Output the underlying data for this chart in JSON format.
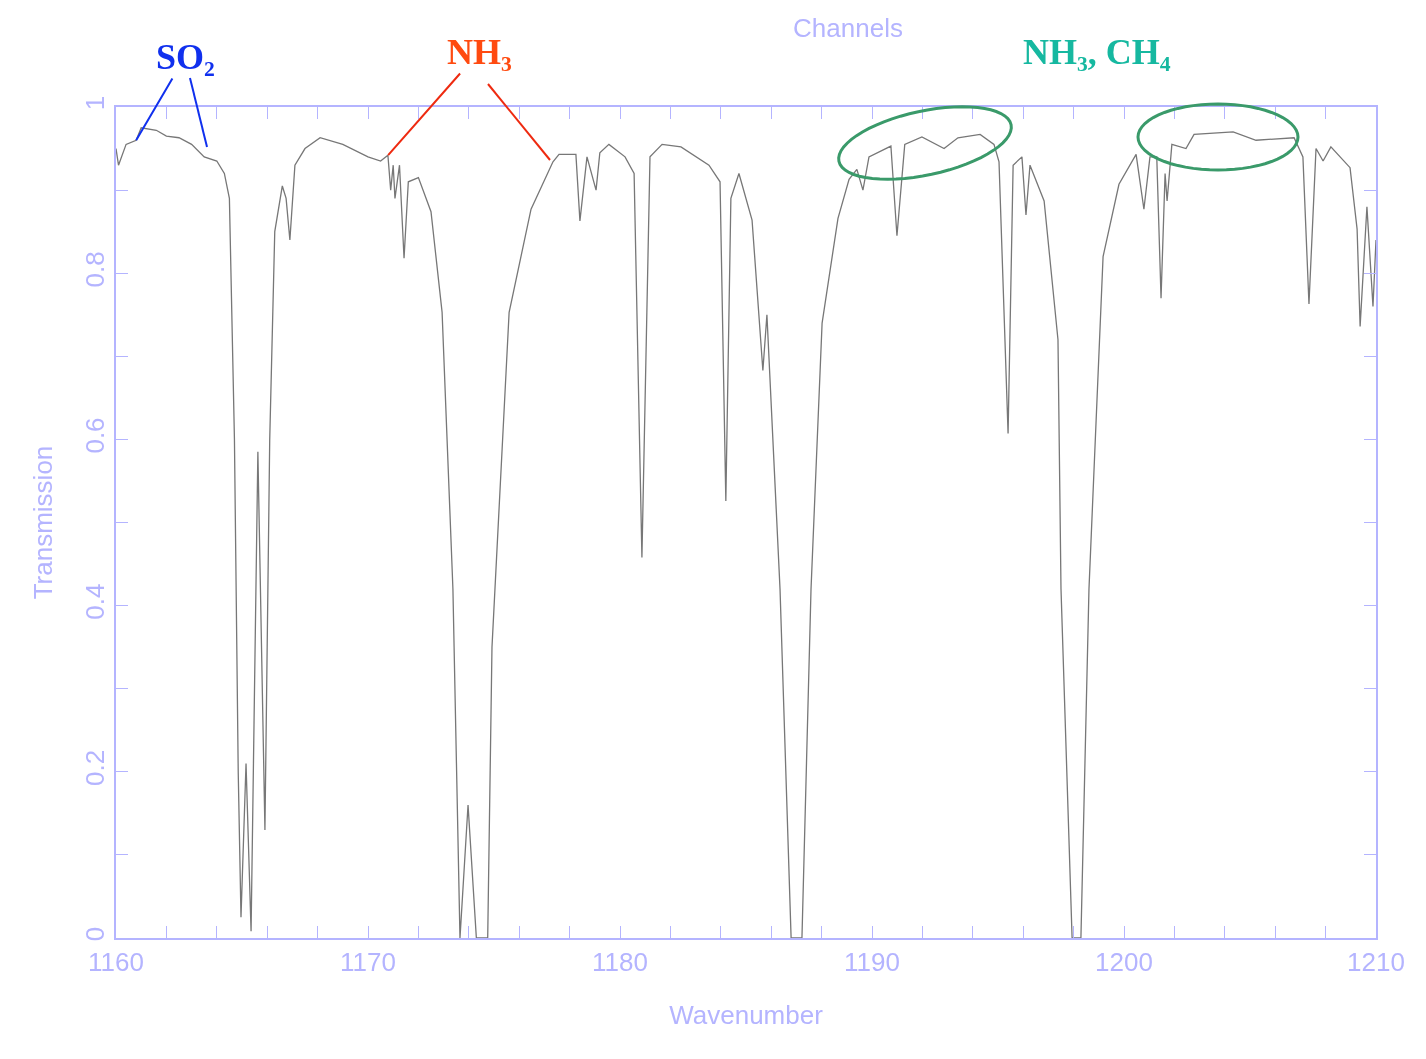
{
  "chart_data": {
    "type": "line",
    "title": "Channels",
    "xlabel": "Wavenumber",
    "ylabel": "Transmission",
    "annotations": [
      {
        "text": "SO₂",
        "x": 1160.8,
        "y": 0.96
      },
      {
        "text": "NH₃",
        "x": 1170.8,
        "y": 0.942
      },
      "NH₃, CH₄"
    ],
    "x": [
      1160.0,
      1160.1,
      1160.4,
      1160.8,
      1161.0,
      1161.6,
      1162.0,
      1162.5,
      1163.0,
      1163.5,
      1164.0,
      1164.3,
      1164.5,
      1164.7,
      1164.85,
      1164.96,
      1165.16,
      1165.36,
      1165.63,
      1165.91,
      1166.1,
      1166.3,
      1166.6,
      1166.75,
      1166.9,
      1167.1,
      1167.5,
      1168.1,
      1169.0,
      1170.0,
      1170.5,
      1170.79,
      1170.9,
      1171.0,
      1171.07,
      1171.25,
      1171.43,
      1171.6,
      1172.0,
      1172.5,
      1172.94,
      1173.37,
      1173.65,
      1173.97,
      1174.3,
      1174.75,
      1174.92,
      1175.6,
      1176.47,
      1177.34,
      1177.58,
      1178.25,
      1178.41,
      1178.69,
      1179.05,
      1179.2,
      1179.56,
      1180.2,
      1180.56,
      1180.87,
      1181.19,
      1181.67,
      1182.42,
      1183.53,
      1183.97,
      1184.2,
      1184.4,
      1184.72,
      1185.24,
      1185.67,
      1185.83,
      1186.35,
      1186.79,
      1187.22,
      1187.58,
      1188.02,
      1188.65,
      1189.09,
      1189.4,
      1189.64,
      1189.88,
      1190.75,
      1190.99,
      1191.3,
      1191.98,
      1192.86,
      1193.41,
      1194.29,
      1194.84,
      1195.04,
      1195.4,
      1195.6,
      1195.95,
      1196.11,
      1196.27,
      1196.83,
      1197.38,
      1197.5,
      1197.94,
      1198.29,
      1198.61,
      1199.17,
      1199.8,
      1200.48,
      1200.79,
      1201.03,
      1201.3,
      1201.47,
      1201.63,
      1201.71,
      1201.9,
      1202.46,
      1202.78,
      1204.33,
      1205.24,
      1206.75,
      1207.1,
      1207.34,
      1207.62,
      1207.9,
      1208.21,
      1208.97,
      1209.25,
      1209.37,
      1209.64,
      1209.88,
      1210.0
    ],
    "values": [
      0.95,
      0.93,
      0.955,
      0.96,
      0.975,
      0.972,
      0.965,
      0.963,
      0.955,
      0.94,
      0.935,
      0.92,
      0.89,
      0.6,
      0.2,
      0.025,
      0.21,
      0.008,
      0.585,
      0.13,
      0.6,
      0.85,
      0.905,
      0.89,
      0.84,
      0.93,
      0.95,
      0.963,
      0.955,
      0.94,
      0.935,
      0.942,
      0.9,
      0.93,
      0.89,
      0.93,
      0.818,
      0.91,
      0.915,
      0.874,
      0.753,
      0.42,
      0.0,
      0.16,
      0.0,
      0.0,
      0.35,
      0.753,
      0.877,
      0.934,
      0.943,
      0.943,
      0.863,
      0.94,
      0.9,
      0.945,
      0.955,
      0.94,
      0.92,
      0.458,
      0.94,
      0.955,
      0.952,
      0.93,
      0.91,
      0.526,
      0.89,
      0.92,
      0.864,
      0.683,
      0.75,
      0.42,
      0.0,
      0.0,
      0.42,
      0.74,
      0.866,
      0.913,
      0.925,
      0.9,
      0.94,
      0.953,
      0.845,
      0.955,
      0.964,
      0.95,
      0.963,
      0.967,
      0.955,
      0.934,
      0.607,
      0.93,
      0.94,
      0.87,
      0.93,
      0.887,
      0.72,
      0.42,
      0.0,
      0.0,
      0.42,
      0.82,
      0.907,
      0.943,
      0.877,
      0.94,
      0.94,
      0.77,
      0.92,
      0.887,
      0.955,
      0.95,
      0.967,
      0.97,
      0.96,
      0.963,
      0.94,
      0.763,
      0.95,
      0.935,
      0.952,
      0.927,
      0.853,
      0.736,
      0.88,
      0.76,
      0.84
    ],
    "color": "#777777",
    "xlim": [
      1160,
      1210
    ],
    "ylim": [
      0,
      1
    ],
    "xticks": [
      1160,
      {
        "value": 1162,
        "label": null
      },
      {
        "value": 1164,
        "label": null
      },
      {
        "value": 1166,
        "label": null
      },
      {
        "value": 1168,
        "label": null
      },
      1170,
      {
        "value": 1172,
        "label": null
      },
      {
        "value": 1174,
        "label": null
      },
      {
        "value": 1176,
        "label": null
      },
      {
        "value": 1178,
        "label": null
      },
      1180,
      {
        "value": 1182,
        "label": null
      },
      {
        "value": 1184,
        "label": null
      },
      {
        "value": 1186,
        "label": null
      },
      {
        "value": 1188,
        "label": null
      },
      1190,
      {
        "value": 1192,
        "label": null
      },
      {
        "value": 1194,
        "label": null
      },
      {
        "value": 1196,
        "label": null
      },
      {
        "value": 1198,
        "label": null
      },
      1200,
      {
        "value": 1202,
        "label": null
      },
      {
        "value": 1204,
        "label": null
      },
      {
        "value": 1206,
        "label": null
      },
      {
        "value": 1208,
        "label": null
      },
      1210
    ],
    "yticks": [
      0,
      {
        "value": 0.1,
        "label": null
      },
      0.2,
      {
        "value": 0.3,
        "label": null
      },
      0.4,
      {
        "value": 0.5,
        "label": null
      },
      0.6,
      {
        "value": 0.7,
        "label": null
      },
      0.8,
      {
        "value": 0.9,
        "label": null
      },
      1
    ],
    "marker": "none",
    "line_style": "solid"
  }
}
